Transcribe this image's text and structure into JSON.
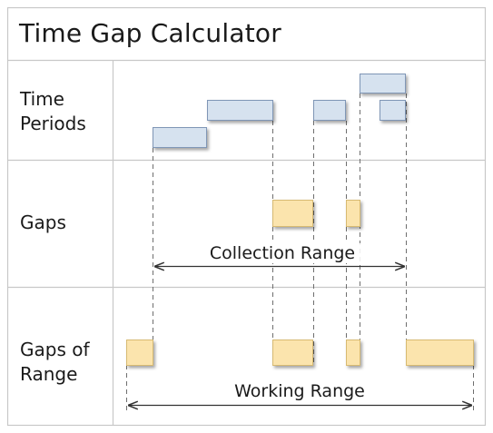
{
  "title": "Time Gap Calculator",
  "rows": [
    {
      "label_lines": [
        "Time",
        "Periods"
      ]
    },
    {
      "label_lines": [
        "Gaps"
      ]
    },
    {
      "label_lines": [
        "Gaps of",
        "Range"
      ]
    }
  ],
  "ranges": {
    "collection": "Collection Range",
    "working": "Working Range"
  },
  "colors": {
    "period_fill": "#d6e2ef",
    "period_stroke": "#7f96b6",
    "gap_fill": "#fbe4ad",
    "gap_stroke": "#d7ba72",
    "grid": "#c8c8c8",
    "guide": "#6e6e6e"
  }
}
